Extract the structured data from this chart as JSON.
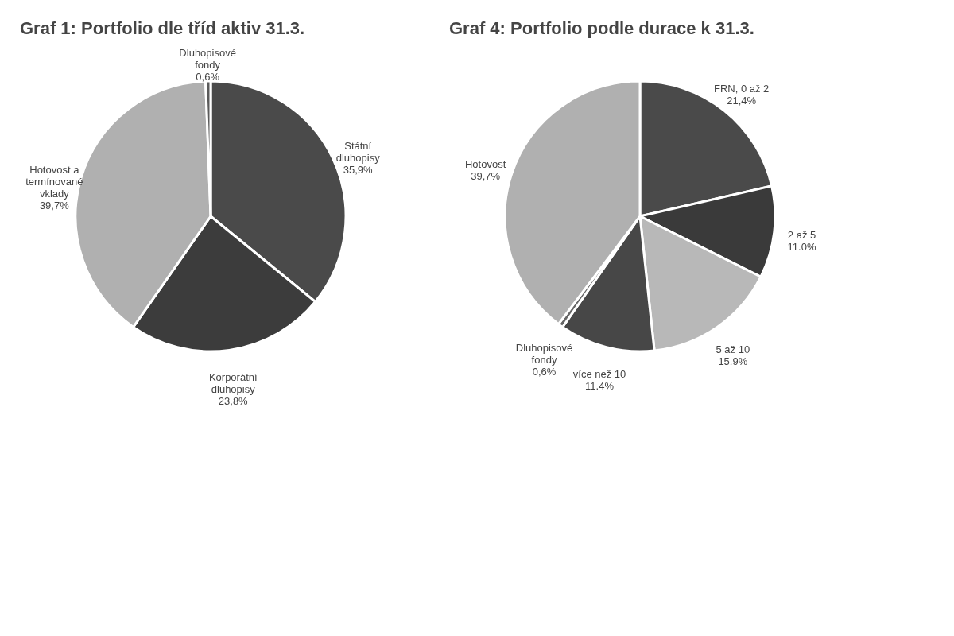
{
  "chart_data": [
    {
      "type": "pie",
      "title": "Graf 1: Portfolio dle tříd aktiv 31.3.",
      "categories": [
        "Státní dluhopisy",
        "Korporátní dluhopisy",
        "Hotovost a termínované vklady",
        "Dluhopisové fondy"
      ],
      "values": [
        35.9,
        23.8,
        39.7,
        0.6
      ],
      "colors": [
        "#4a4a4a",
        "#3c3c3c",
        "#b0b0b0",
        "#5a5a5a"
      ],
      "value_labels": [
        "35,9%",
        "23,8%",
        "39,7%",
        "0,6%"
      ],
      "legend": false
    },
    {
      "type": "pie",
      "title": "Graf 4: Portfolio podle durace k 31.3.",
      "categories": [
        "FRN, 0 až 2",
        "2 až 5",
        "5 až 10",
        "více než 10",
        "Dluhopisové fondy",
        "Hotovost"
      ],
      "values": [
        21.4,
        11.0,
        15.9,
        11.4,
        0.6,
        39.7
      ],
      "colors": [
        "#4a4a4a",
        "#3a3a3a",
        "#b8b8b8",
        "#474747",
        "#666666",
        "#b0b0b0"
      ],
      "value_labels": [
        "21,4%",
        "11.0%",
        "15.9%",
        "11.4%",
        "0,6%",
        "39,7%"
      ],
      "legend": false
    }
  ]
}
